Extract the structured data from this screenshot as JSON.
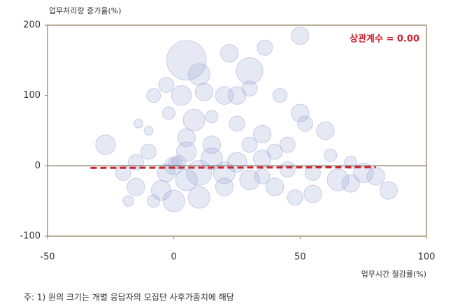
{
  "chart_data": {
    "type": "bubble",
    "title": "업무처리량 증가율(%)",
    "x_label": "업무시간 절감률(%)",
    "annotation": "상관계수 = 0.00",
    "xlim": [
      -50,
      100
    ],
    "xticks": [
      -50,
      0,
      50,
      100
    ],
    "ylim": [
      -100,
      200
    ],
    "yticks": [
      -100,
      0,
      100,
      200
    ],
    "color": "#8d9bcf",
    "trend": {
      "color": "#d0242e",
      "x": [
        -33,
        80
      ],
      "y": [
        -3,
        -2
      ]
    },
    "series": [
      {
        "x": [
          5,
          30,
          50,
          36,
          22,
          10,
          3,
          12,
          20,
          25,
          30,
          42,
          -3,
          -8,
          -27,
          -14,
          -10,
          -2,
          8,
          15,
          25,
          35,
          45,
          50,
          52,
          60,
          65,
          70,
          75,
          80,
          85,
          55,
          48,
          40,
          30,
          20,
          10,
          0,
          -5,
          -15,
          -20,
          -15,
          -10,
          5,
          15,
          25,
          35,
          20,
          10,
          0,
          2,
          0,
          -3,
          5,
          35,
          45,
          55,
          62,
          70,
          15,
          30,
          -8,
          -18,
          40,
          5
        ],
        "y": [
          150,
          135,
          185,
          168,
          160,
          130,
          100,
          105,
          100,
          100,
          110,
          100,
          115,
          100,
          30,
          60,
          50,
          75,
          65,
          70,
          60,
          45,
          30,
          75,
          60,
          50,
          -20,
          -25,
          -10,
          -15,
          -35,
          -40,
          -45,
          -30,
          -20,
          -30,
          -45,
          -50,
          -35,
          -30,
          -10,
          5,
          20,
          20,
          10,
          5,
          10,
          -10,
          -10,
          0,
          5,
          3,
          -10,
          -20,
          -15,
          -5,
          -10,
          15,
          5,
          30,
          30,
          -50,
          -50,
          20,
          40
        ],
        "sizes": [
          200,
          90,
          40,
          30,
          40,
          60,
          50,
          40,
          40,
          40,
          30,
          25,
          30,
          25,
          50,
          10,
          10,
          20,
          60,
          20,
          30,
          40,
          30,
          40,
          30,
          40,
          60,
          40,
          50,
          40,
          40,
          40,
          30,
          40,
          50,
          40,
          60,
          60,
          50,
          40,
          30,
          30,
          30,
          50,
          60,
          50,
          40,
          60,
          80,
          40,
          25,
          15,
          40,
          60,
          30,
          30,
          30,
          20,
          20,
          40,
          30,
          20,
          15,
          30,
          40
        ]
      }
    ]
  },
  "note": "주: 1) 원의 크기는 개별 응답자의 모집단 사후가중치에 해당"
}
